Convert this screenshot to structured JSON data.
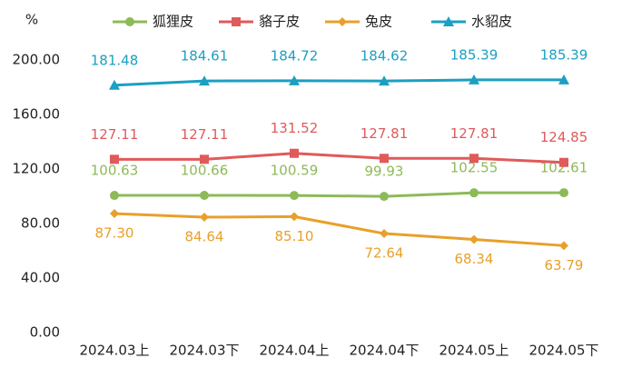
{
  "chart_data": {
    "type": "line",
    "y_label": "%",
    "categories": [
      "2024.03上",
      "2024.03下",
      "2024.04上",
      "2024.04下",
      "2024.05上",
      "2024.05下"
    ],
    "series": [
      {
        "name": "狐狸皮",
        "color": "#8dba58",
        "values": [
          100.63,
          100.66,
          100.59,
          99.93,
          102.55,
          102.61
        ],
        "value_labels": [
          "100.63",
          "100.66",
          "100.59",
          "99.93",
          "102.55",
          "102.61"
        ]
      },
      {
        "name": "貉子皮",
        "color": "#e05a5a",
        "values": [
          127.11,
          127.11,
          131.52,
          127.81,
          127.81,
          124.85
        ],
        "value_labels": [
          "127.11",
          "127.11",
          "131.52",
          "127.81",
          "127.81",
          "124.85"
        ]
      },
      {
        "name": "兔皮",
        "color": "#e8a02a",
        "values": [
          87.3,
          84.64,
          85.1,
          72.64,
          68.34,
          63.79
        ],
        "value_labels": [
          "87.30",
          "84.64",
          "85.10",
          "72.64",
          "68.34",
          "63.79"
        ]
      },
      {
        "name": "水貂皮",
        "color": "#1b9fc2",
        "values": [
          181.48,
          184.61,
          184.72,
          184.62,
          185.39,
          185.39
        ],
        "value_labels": [
          "181.48",
          "184.61",
          "184.72",
          "184.62",
          "185.39",
          "185.39"
        ]
      }
    ],
    "ylim": [
      0,
      200
    ],
    "yticks": [
      {
        "value": 0,
        "label": "0.00"
      },
      {
        "value": 40,
        "label": "40.00"
      },
      {
        "value": 80,
        "label": "80.00"
      },
      {
        "value": 120,
        "label": "120.00"
      },
      {
        "value": 160,
        "label": "160.00"
      },
      {
        "value": 200,
        "label": "200.00"
      }
    ],
    "grid": false,
    "legend": "top"
  }
}
